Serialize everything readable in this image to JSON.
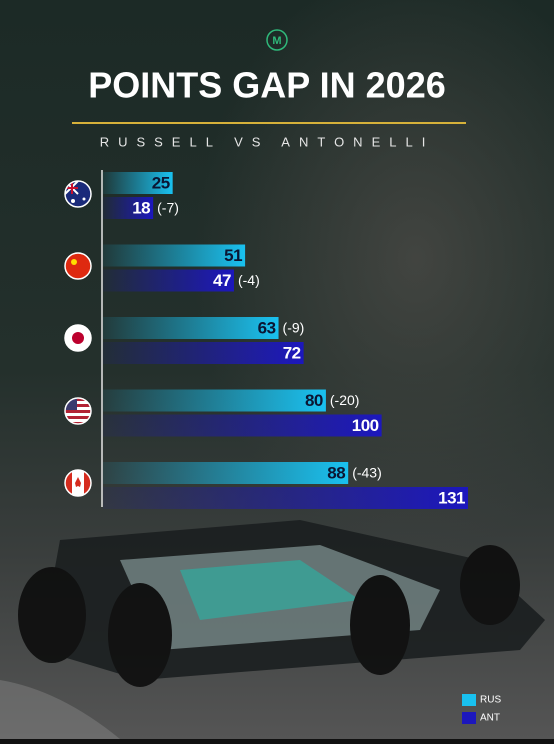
{
  "chart_data": {
    "type": "bar",
    "orientation": "horizontal",
    "title": "POINTS GAP IN 2026",
    "subtitle": "RUSSELL VS ANTONELLI",
    "categories": [
      null,
      null,
      null,
      null,
      null
    ],
    "series": [
      {
        "name": "RUS",
        "color": "#19c1f0",
        "values": [
          25,
          51,
          63,
          80,
          88
        ],
        "gap_labels": [
          null,
          null,
          "(-9)",
          "(-20)",
          "(-43)"
        ]
      },
      {
        "name": "ANT",
        "color": "#1c17bd",
        "values": [
          18,
          47,
          72,
          100,
          131
        ],
        "gap_labels": [
          "(-7)",
          "(-4)",
          null,
          null,
          null
        ]
      }
    ],
    "legend": "bottom-right"
  }
}
